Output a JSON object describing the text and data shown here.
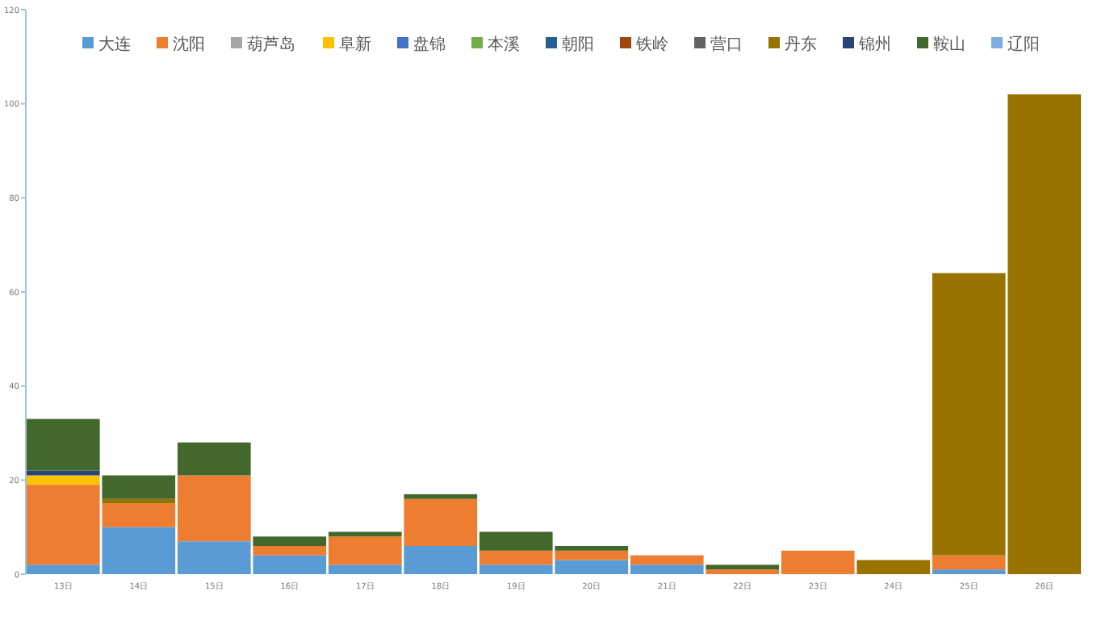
{
  "chart_data": {
    "type": "bar",
    "stacked": true,
    "categories": [
      "13日",
      "14日",
      "15日",
      "16日",
      "17日",
      "18日",
      "19日",
      "20日",
      "21日",
      "22日",
      "23日",
      "24日",
      "25日",
      "26日"
    ],
    "ylim": [
      0,
      120
    ],
    "yticks": [
      0,
      20,
      40,
      60,
      80,
      100,
      120
    ],
    "grid": false,
    "legend": "top right",
    "series": [
      {
        "name": "大连",
        "color": "#5b9bd5",
        "values": [
          2,
          10,
          7,
          4,
          2,
          6,
          2,
          3,
          2,
          0,
          0,
          0,
          1,
          0
        ]
      },
      {
        "name": "沈阳",
        "color": "#ed7d31",
        "values": [
          17,
          5,
          14,
          2,
          6,
          10,
          3,
          2,
          2,
          1,
          5,
          0,
          3,
          0
        ]
      },
      {
        "name": "葫芦岛",
        "color": "#a5a5a5",
        "values": [
          0,
          0,
          0,
          0,
          0,
          0,
          0,
          0,
          0,
          0,
          0,
          0,
          0,
          0
        ]
      },
      {
        "name": "阜新",
        "color": "#ffc000",
        "values": [
          2,
          0,
          0,
          0,
          0,
          0,
          0,
          0,
          0,
          0,
          0,
          0,
          0,
          0
        ]
      },
      {
        "name": "盘锦",
        "color": "#4472c4",
        "values": [
          0,
          0,
          0,
          0,
          0,
          0,
          0,
          0,
          0,
          0,
          0,
          0,
          0,
          0
        ]
      },
      {
        "name": "本溪",
        "color": "#70ad47",
        "values": [
          0,
          0,
          0,
          0,
          0,
          0,
          0,
          0,
          0,
          0,
          0,
          0,
          0,
          0
        ]
      },
      {
        "name": "朝阳",
        "color": "#255e91",
        "values": [
          0,
          0,
          0,
          0,
          0,
          0,
          0,
          0,
          0,
          0,
          0,
          0,
          0,
          0
        ]
      },
      {
        "name": "铁岭",
        "color": "#9e480e",
        "values": [
          0,
          0,
          0,
          0,
          0,
          0,
          0,
          0,
          0,
          0,
          0,
          0,
          0,
          0
        ]
      },
      {
        "name": "营口",
        "color": "#636363",
        "values": [
          0,
          0,
          0,
          0,
          0,
          0,
          0,
          0,
          0,
          0,
          0,
          0,
          0,
          0
        ]
      },
      {
        "name": "丹东",
        "color": "#997300",
        "values": [
          0,
          1,
          0,
          0,
          0,
          0,
          0,
          0,
          0,
          0,
          0,
          3,
          60,
          102
        ]
      },
      {
        "name": "锦州",
        "color": "#264478",
        "values": [
          1,
          0,
          0,
          0,
          0,
          0,
          0,
          0,
          0,
          0,
          0,
          0,
          0,
          0
        ]
      },
      {
        "name": "鞍山",
        "color": "#43682b",
        "values": [
          11,
          5,
          7,
          2,
          1,
          1,
          4,
          1,
          0,
          1,
          0,
          0,
          0,
          0
        ]
      },
      {
        "name": "辽阳",
        "color": "#7cafdd",
        "values": [
          0,
          0,
          0,
          0,
          0,
          0,
          0,
          0,
          0,
          0,
          0,
          0,
          0,
          0
        ]
      }
    ]
  }
}
